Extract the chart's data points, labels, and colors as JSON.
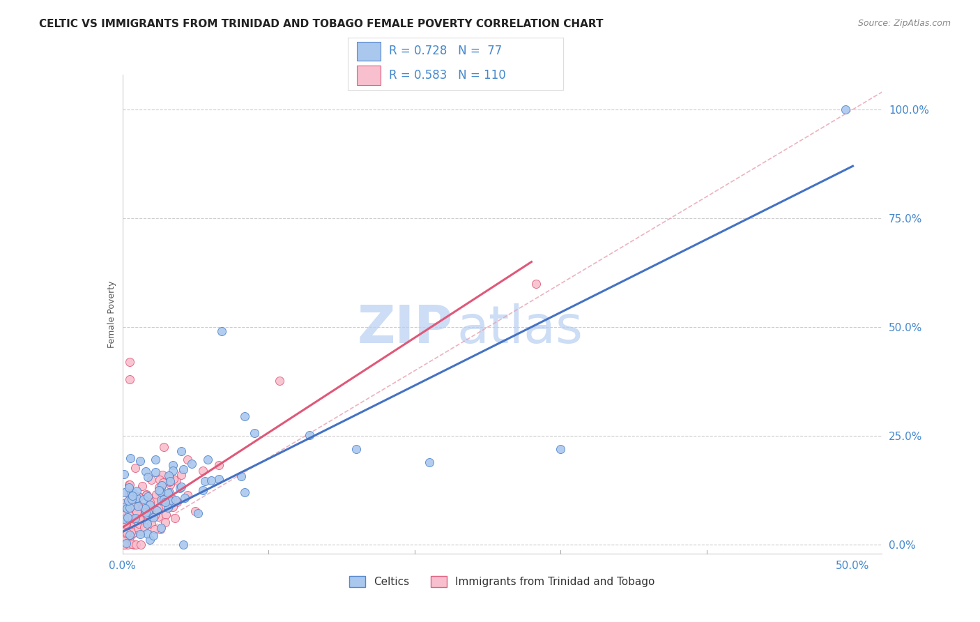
{
  "title": "CELTIC VS IMMIGRANTS FROM TRINIDAD AND TOBAGO FEMALE POVERTY CORRELATION CHART",
  "source": "Source: ZipAtlas.com",
  "ylabel": "Female Poverty",
  "xlim": [
    0.0,
    0.52
  ],
  "ylim": [
    -0.02,
    1.08
  ],
  "xticks": [
    0.0,
    0.1,
    0.2,
    0.3,
    0.4,
    0.5
  ],
  "xtick_labels": [
    "0.0%",
    "",
    "",
    "",
    "",
    "50.0%"
  ],
  "ytick_labels_right": [
    "0.0%",
    "25.0%",
    "50.0%",
    "75.0%",
    "100.0%"
  ],
  "yticks_right": [
    0.0,
    0.25,
    0.5,
    0.75,
    1.0
  ],
  "series1_name": "Celtics",
  "series1_R": 0.728,
  "series1_N": 77,
  "series1_color": "#aac8ee",
  "series1_edge_color": "#5588cc",
  "series1_line_color": "#4472c4",
  "series2_name": "Immigrants from Trinidad and Tobago",
  "series2_R": 0.583,
  "series2_N": 110,
  "series2_color": "#f8c0ce",
  "series2_edge_color": "#e06080",
  "series2_line_color": "#e05878",
  "legend_color": "#4488cc",
  "background_color": "#ffffff",
  "grid_color": "#cccccc",
  "title_fontsize": 11,
  "source_fontsize": 9,
  "blue_line_x0": 0.0,
  "blue_line_y0": 0.03,
  "blue_line_x1": 0.5,
  "blue_line_y1": 0.87,
  "pink_line_x0": 0.0,
  "pink_line_y0": 0.04,
  "pink_line_x1": 0.28,
  "pink_line_y1": 0.65,
  "ref_line_color": "#e8a0b0",
  "ref_line_style": "--"
}
